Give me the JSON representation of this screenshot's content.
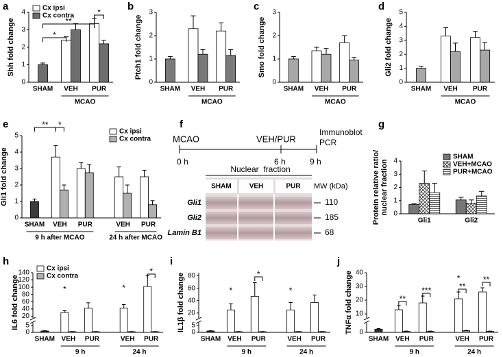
{
  "chart_data": [
    {
      "type": "bar",
      "label": "a",
      "ylabel": "Shh fold change",
      "categories": [
        "SHAM",
        "VEH",
        "PUR"
      ],
      "groups": [
        "MCAO"
      ],
      "ylim": [
        0,
        4
      ],
      "yticks": [
        0,
        1,
        2,
        3,
        4
      ],
      "legend": "upper left",
      "series": [
        {
          "name": "Cx ipsi",
          "color": "#ffffff",
          "values": [
            null,
            2.4,
            3.35
          ],
          "errors": [
            null,
            0.2,
            0.3
          ]
        },
        {
          "name": "Cx contra",
          "color": "#6e6e6e",
          "values": [
            1.0,
            3.0,
            2.2
          ],
          "errors": [
            0.1,
            0.35,
            0.2
          ]
        }
      ],
      "annotations": [
        "*",
        "**",
        "*"
      ]
    },
    {
      "type": "bar",
      "label": "b",
      "ylabel": "Ptch1 fold change",
      "categories": [
        "SHAM",
        "VEH",
        "PUR"
      ],
      "groups": [
        "MCAO"
      ],
      "ylim": [
        0,
        3
      ],
      "yticks": [
        0,
        1,
        2,
        3
      ],
      "series": [
        {
          "color": "#ffffff",
          "values": [
            null,
            2.3,
            2.2
          ],
          "errors": [
            null,
            0.55,
            0.35
          ]
        },
        {
          "color": "#7a7a7a",
          "values": [
            1.0,
            1.2,
            1.15
          ],
          "errors": [
            0.1,
            0.2,
            0.25
          ]
        }
      ]
    },
    {
      "type": "bar",
      "label": "c",
      "ylabel": "Smo fold change",
      "categories": [
        "SHAM",
        "VEH",
        "PUR"
      ],
      "groups": [
        "MCAO"
      ],
      "ylim": [
        0,
        3
      ],
      "yticks": [
        0,
        1,
        2,
        3
      ],
      "series": [
        {
          "color": "#ffffff",
          "values": [
            null,
            1.35,
            1.7
          ],
          "errors": [
            null,
            0.15,
            0.3
          ]
        },
        {
          "color": "#a8a8a8",
          "values": [
            1.0,
            1.2,
            0.95
          ],
          "errors": [
            0.1,
            0.25,
            0.12
          ]
        }
      ]
    },
    {
      "type": "bar",
      "label": "d",
      "ylabel": "Gli2 fold change",
      "categories": [
        "SHAM",
        "VEH",
        "PUR"
      ],
      "groups": [
        "MCAO"
      ],
      "ylim": [
        0,
        5
      ],
      "yticks": [
        0,
        1,
        2,
        3,
        4,
        5
      ],
      "series": [
        {
          "color": "#ffffff",
          "values": [
            null,
            3.3,
            3.2
          ],
          "errors": [
            null,
            0.6,
            0.45
          ]
        },
        {
          "color": "#a8a8a8",
          "values": [
            1.0,
            2.2,
            2.3
          ],
          "errors": [
            0.15,
            0.6,
            0.55
          ]
        }
      ]
    },
    {
      "type": "bar",
      "label": "e",
      "ylabel": "Gli1 fold change",
      "categories": [
        "SHAM",
        "VEH",
        "PUR",
        "VEH",
        "PUR"
      ],
      "groups": [
        "9 h after MCAO",
        "24 h after MCAO"
      ],
      "ylim": [
        0,
        5
      ],
      "yticks": [
        0,
        1,
        2,
        3,
        4,
        5
      ],
      "legend": "upper right",
      "sham_color": "#3a3a3a",
      "series": [
        {
          "name": "Cx ipsi",
          "color": "#ffffff",
          "values": [
            null,
            3.7,
            3.0,
            2.5,
            2.5
          ],
          "errors": [
            null,
            0.7,
            0.35,
            0.6,
            0.4
          ]
        },
        {
          "name": "Cx contra",
          "color": "#b0b0b0",
          "values": [
            1.0,
            1.7,
            2.75,
            1.5,
            0.8
          ],
          "errors": [
            0.15,
            0.3,
            0.5,
            0.5,
            0.25
          ]
        }
      ],
      "annotations": [
        "**",
        "*"
      ]
    },
    {
      "type": "bar",
      "label": "g",
      "ylabel": [
        "Protein relative ratio/",
        "nuclear fraction"
      ],
      "categories": [
        "Gli1",
        "Gli2"
      ],
      "ylim": [
        0,
        4
      ],
      "yticks": [
        0,
        1,
        2,
        3,
        4
      ],
      "legend": "upper right",
      "series": [
        {
          "name": "SHAM",
          "color": "#777777",
          "values": [
            0.7,
            1.05
          ],
          "errors": [
            0.08,
            0.2
          ]
        },
        {
          "name": "VEH+MCAO",
          "color": "#ffffff",
          "pattern": "cross",
          "values": [
            2.3,
            0.8
          ],
          "errors": [
            0.95,
            0.25
          ]
        },
        {
          "name": "PUR+MCAO",
          "color": "#ffffff",
          "pattern": "lines",
          "values": [
            1.6,
            1.35
          ],
          "errors": [
            0.7,
            0.35
          ]
        }
      ]
    },
    {
      "type": "bar",
      "label": "h",
      "ylabel": "IL6 fold change",
      "categories": [
        "SHAM",
        "VEH",
        "PUR",
        "VEH",
        "PUR"
      ],
      "groups": [
        "9 h",
        "24 h"
      ],
      "ylim": [
        0,
        140
      ],
      "ybreak": [
        7,
        15
      ],
      "yticks": [
        0,
        5,
        20,
        40,
        60,
        80,
        100,
        120,
        140
      ],
      "legend": "upper left",
      "sham_color": "#333333",
      "series": [
        {
          "name": "Cx ipsi",
          "color": "#ffffff",
          "values": [
            null,
            30,
            42,
            42,
            102
          ],
          "errors": [
            null,
            5,
            15,
            10,
            30
          ]
        },
        {
          "name": "Cx contra",
          "color": "#b0b0b0",
          "values": [
            1.0,
            0.5,
            0.5,
            0.5,
            0.5
          ],
          "errors": [
            0.2,
            0.1,
            0.1,
            0.1,
            0.1
          ]
        }
      ],
      "annotations": [
        "*",
        "*",
        "*"
      ]
    },
    {
      "type": "bar",
      "label": "i",
      "ylabel": "IL1β fold change",
      "categories": [
        "SHAM",
        "VEH",
        "PUR",
        "VEH",
        "PUR"
      ],
      "groups": [
        "9 h",
        "24 h"
      ],
      "ylim": [
        0,
        85
      ],
      "ybreak": [
        7,
        12
      ],
      "yticks": [
        0,
        5,
        20,
        40,
        60,
        80
      ],
      "sham_color": "#333333",
      "series": [
        {
          "color": "#ffffff",
          "values": [
            null,
            25,
            47,
            25,
            37
          ],
          "errors": [
            null,
            10,
            22,
            12,
            12
          ]
        },
        {
          "color": "#999999",
          "values": [
            1.0,
            0.5,
            0.5,
            0.5,
            0.5
          ],
          "errors": [
            0.2,
            0.1,
            0.1,
            0.1,
            0.1
          ]
        }
      ],
      "annotations": [
        "*",
        "*",
        "*"
      ]
    },
    {
      "type": "bar",
      "label": "j",
      "ylabel": "TNFα fold change",
      "categories": [
        "SHAM",
        "VEH",
        "PUR",
        "VEH",
        "PUR"
      ],
      "groups": [
        "9 h",
        "24 h"
      ],
      "ylim": [
        0,
        40
      ],
      "ybreak": [
        3,
        7
      ],
      "yticks": [
        0,
        10,
        20,
        30,
        40
      ],
      "sham_color": "#333333",
      "series": [
        {
          "color": "#ffffff",
          "values": [
            null,
            13,
            18,
            21,
            26
          ],
          "errors": [
            null,
            3,
            5,
            5,
            3
          ]
        },
        {
          "color": "#999999",
          "values": [
            1.0,
            0.3,
            0.3,
            0.5,
            0.3
          ],
          "errors": [
            0.2,
            0.1,
            0.1,
            0.1,
            0.1
          ]
        }
      ],
      "annotations": [
        "**",
        "***",
        "**",
        "*",
        "**"
      ]
    }
  ],
  "diagram": {
    "label": "f",
    "timeline": {
      "events": [
        "MCAO",
        "VEH/PUR"
      ],
      "endpoints": [
        "Immunoblot",
        "PCR"
      ],
      "times": [
        "0 h",
        "6 h",
        "9 h"
      ]
    },
    "blot": {
      "title": "Nuclear  fraction",
      "columns": [
        "SHAM",
        "VEH",
        "PUR"
      ],
      "mw_title": "MW (kDa)",
      "rows": [
        {
          "label": "Gli1",
          "mw": "110"
        },
        {
          "label": "Gli2",
          "mw": "185"
        },
        {
          "label": "Lamin B1",
          "mw": "68"
        }
      ]
    }
  }
}
